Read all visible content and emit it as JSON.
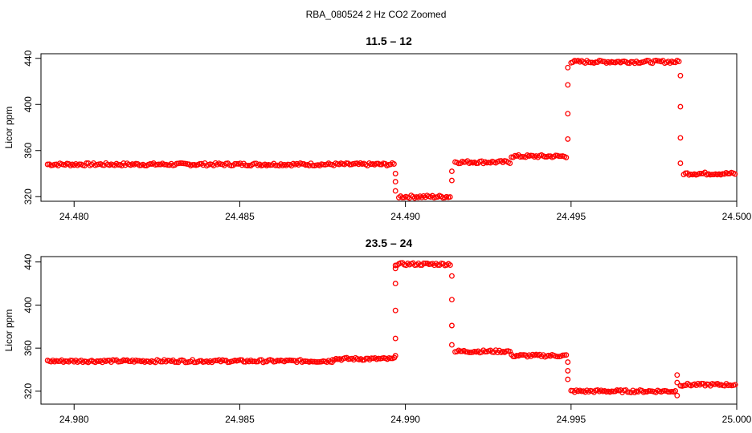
{
  "figure": {
    "title": "RBA_080524  2 Hz CO2 Zoomed",
    "point_color": "#ff0000"
  },
  "chart_data": [
    {
      "type": "scatter",
      "title": "11.5 – 12",
      "ylabel": "Licor ppm",
      "xlabel": "",
      "xlim": [
        24.479,
        24.5
      ],
      "ylim": [
        316,
        444
      ],
      "xticks": [
        "24.480",
        "24.485",
        "24.490",
        "24.495",
        "24.500"
      ],
      "xtick_values": [
        24.48,
        24.485,
        24.49,
        24.495,
        24.5
      ],
      "yticks": [
        "320",
        "360",
        "400",
        "440"
      ],
      "ytick_values": [
        320,
        360,
        400,
        440
      ],
      "segments": [
        {
          "x0": 24.4792,
          "x1": 24.4897,
          "y": 348
        },
        {
          "x0": 24.4898,
          "x1": 24.4914,
          "y": 320
        },
        {
          "x0": 24.4915,
          "x1": 24.4932,
          "y": 350
        },
        {
          "x0": 24.4932,
          "x1": 24.4949,
          "y": 355
        },
        {
          "x0": 24.495,
          "x1": 24.4983,
          "y": 437
        },
        {
          "x0": 24.4984,
          "x1": 24.5,
          "y": 340
        }
      ],
      "transitions": [
        {
          "x": 24.4897,
          "y": [
            340,
            333,
            325
          ]
        },
        {
          "x": 24.4914,
          "y": [
            334,
            342
          ]
        },
        {
          "x": 24.4949,
          "y": [
            370,
            392,
            417,
            432
          ]
        },
        {
          "x": 24.4983,
          "y": [
            425,
            398,
            371,
            349
          ]
        }
      ]
    },
    {
      "type": "scatter",
      "title": "23.5 – 24",
      "ylabel": "Licor ppm",
      "xlabel": "",
      "xlim": [
        24.979,
        25.0
      ],
      "ylim": [
        308,
        445
      ],
      "xticks": [
        "24.980",
        "24.985",
        "24.990",
        "24.995",
        "25.000"
      ],
      "xtick_values": [
        24.98,
        24.985,
        24.99,
        24.995,
        25.0
      ],
      "yticks": [
        "320",
        "360",
        "400",
        "440"
      ],
      "ytick_values": [
        320,
        360,
        400,
        440
      ],
      "segments": [
        {
          "x0": 24.9792,
          "x1": 24.9878,
          "y": 348
        },
        {
          "x0": 24.9878,
          "x1": 24.9897,
          "y": 350
        },
        {
          "x0": 24.9897,
          "x1": 24.9914,
          "y": 438
        },
        {
          "x0": 24.9915,
          "x1": 24.9932,
          "y": 357
        },
        {
          "x0": 24.9932,
          "x1": 24.9949,
          "y": 353
        },
        {
          "x0": 24.995,
          "x1": 24.9982,
          "y": 320
        },
        {
          "x0": 24.9983,
          "x1": 25.0,
          "y": 326
        }
      ],
      "transitions": [
        {
          "x": 24.9897,
          "y": [
            353,
            369,
            395,
            420,
            434
          ]
        },
        {
          "x": 24.9914,
          "y": [
            427,
            405,
            381,
            363
          ]
        },
        {
          "x": 24.9949,
          "y": [
            347,
            339,
            331
          ]
        },
        {
          "x": 24.9982,
          "y": [
            316,
            335,
            328
          ]
        }
      ]
    }
  ]
}
